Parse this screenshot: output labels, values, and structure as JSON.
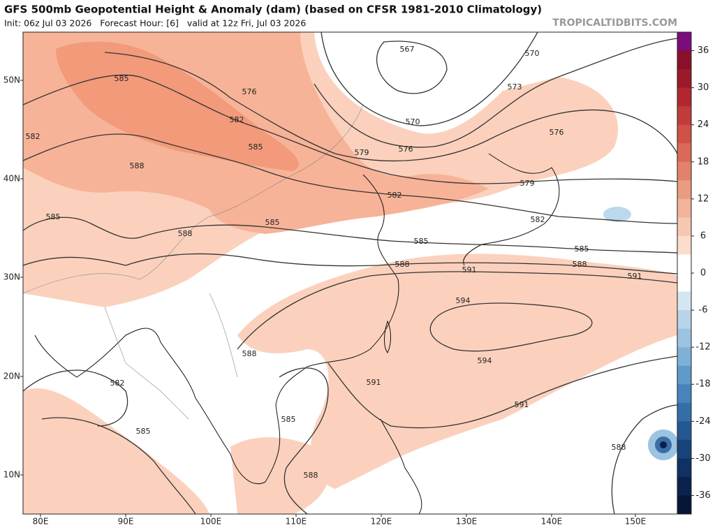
{
  "header": {
    "title": "GFS 500mb Geopotential Height & Anomaly (dam) (based on CFSR 1981-2010 Climatology)",
    "subtitle": "Init: 06z Jul 03 2026   Forecast Hour: [6]   valid at 12z Fri, Jul 03 2026",
    "site": "TROPICALTIDBITS.COM"
  },
  "map": {
    "lat_labels": [
      "50N",
      "40N",
      "30N",
      "20N",
      "10N"
    ],
    "lon_labels": [
      "80E",
      "90E",
      "100E",
      "110E",
      "120E",
      "130E",
      "140E",
      "150E"
    ],
    "contour_labels": [
      "567",
      "570",
      "573",
      "576",
      "585",
      "582",
      "585",
      "570",
      "576",
      "579",
      "576",
      "582",
      "588",
      "579",
      "582",
      "585",
      "588",
      "585",
      "582",
      "585",
      "585",
      "588",
      "588",
      "591",
      "591",
      "594",
      "588",
      "594",
      "582",
      "591",
      "591",
      "585",
      "585",
      "588",
      "588"
    ]
  },
  "colorbar": {
    "labels": [
      "36",
      "30",
      "24",
      "18",
      "12",
      "6",
      "0",
      "-6",
      "-12",
      "-18",
      "-24",
      "-30",
      "-36"
    ]
  }
}
